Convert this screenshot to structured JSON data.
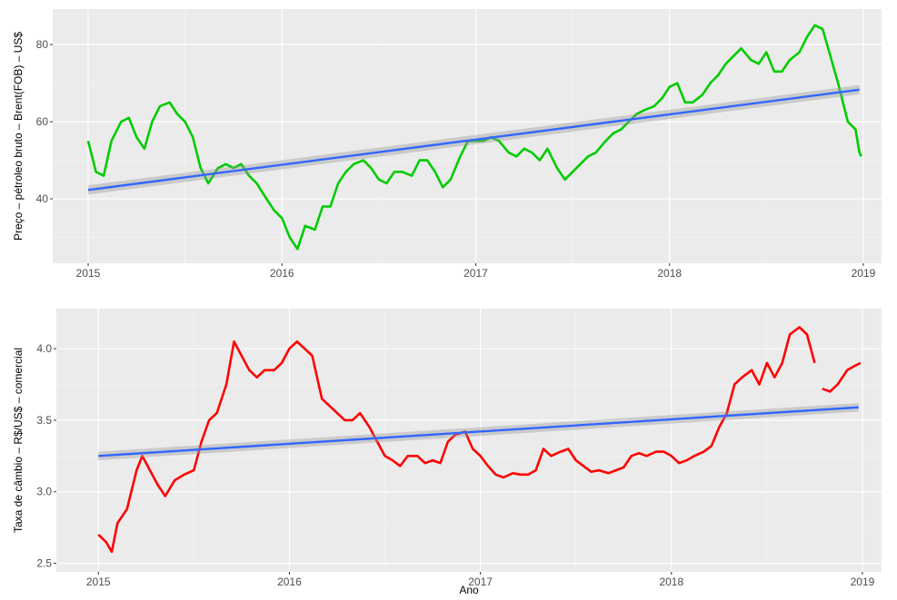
{
  "chart_data": [
    {
      "type": "line",
      "ylabel": "Preço – pétroleo bruto – Brent(FOB) – US$",
      "xlim": [
        2014.817,
        2019.094
      ],
      "ylim": [
        23.3,
        89.2
      ],
      "xticks": [
        2015,
        2016,
        2017,
        2018,
        2019
      ],
      "yticks": [
        40,
        60,
        80
      ],
      "xminor": [
        2015.5,
        2016.5,
        2017.5,
        2018.5
      ],
      "yminor": [
        30,
        50,
        70
      ],
      "grid": true,
      "series": [
        {
          "color": "#00cc00",
          "x": [
            2015.0,
            2015.04,
            2015.08,
            2015.12,
            2015.17,
            2015.21,
            2015.25,
            2015.29,
            2015.33,
            2015.37,
            2015.42,
            2015.46,
            2015.5,
            2015.54,
            2015.58,
            2015.62,
            2015.67,
            2015.71,
            2015.75,
            2015.79,
            2015.83,
            2015.87,
            2015.92,
            2015.96,
            2016.0,
            2016.04,
            2016.08,
            2016.12,
            2016.17,
            2016.21,
            2016.25,
            2016.29,
            2016.33,
            2016.37,
            2016.42,
            2016.46,
            2016.5,
            2016.54,
            2016.58,
            2016.62,
            2016.67,
            2016.71,
            2016.75,
            2016.79,
            2016.83,
            2016.87,
            2016.92,
            2016.96,
            2017.0,
            2017.04,
            2017.08,
            2017.12,
            2017.17,
            2017.21,
            2017.25,
            2017.29,
            2017.33,
            2017.37,
            2017.42,
            2017.46,
            2017.5,
            2017.54,
            2017.58,
            2017.62,
            2017.67,
            2017.71,
            2017.75,
            2017.79,
            2017.83,
            2017.87,
            2017.92,
            2017.96,
            2018.0,
            2018.04,
            2018.08,
            2018.12,
            2018.17,
            2018.21,
            2018.25,
            2018.29,
            2018.33,
            2018.37,
            2018.42,
            2018.46,
            2018.5,
            2018.54,
            2018.58,
            2018.62,
            2018.67,
            2018.71,
            2018.75,
            2018.79,
            2018.83,
            2018.87,
            2018.92,
            2018.96,
            2018.98,
            2018.99
          ],
          "values": [
            55,
            47,
            46,
            55,
            60,
            61,
            56,
            53,
            60,
            64,
            65,
            62,
            60,
            56,
            48,
            44,
            48,
            49,
            48,
            49,
            46,
            44,
            40,
            37,
            35,
            30,
            27,
            33,
            32,
            38,
            38,
            44,
            47,
            49,
            50,
            48,
            45,
            44,
            47,
            47,
            46,
            50,
            50,
            47,
            43,
            45,
            51,
            55,
            55,
            55,
            56,
            55,
            52,
            51,
            53,
            52,
            50,
            53,
            48,
            45,
            47,
            49,
            51,
            52,
            55,
            57,
            58,
            60,
            62,
            63,
            64,
            66,
            69,
            70,
            65,
            65,
            67,
            70,
            72,
            75,
            77,
            79,
            76,
            75,
            78,
            73,
            73,
            76,
            78,
            82,
            85,
            84,
            77,
            70,
            60,
            58,
            52,
            51
          ]
        }
      ],
      "trend": {
        "color": "#3366ff",
        "x": [
          2015,
          2018.98
        ],
        "values": [
          42.3,
          68.3
        ],
        "lower": [
          41.1,
          67.1
        ],
        "upper": [
          43.5,
          69.5
        ]
      }
    },
    {
      "type": "line",
      "xlabel": "Ano",
      "ylabel": "Taxa de câmbio – R$/US$ – comercial",
      "xlim": [
        2014.78,
        2019.1
      ],
      "ylim": [
        2.44,
        4.28
      ],
      "xticks": [
        2015,
        2016,
        2017,
        2018,
        2019
      ],
      "yticks": [
        2.5,
        {
          "value": 3,
          "label": "3.0"
        },
        3.5,
        {
          "value": 4,
          "label": "4.0"
        }
      ],
      "xminor": [
        2015.5,
        2016.5,
        2017.5,
        2018.5
      ],
      "yminor": [
        2.75,
        3.25,
        3.75
      ],
      "grid": true,
      "series": [
        {
          "color": "#ff0000",
          "x": [
            2015.0,
            2015.04,
            2015.07,
            2015.1,
            2015.15,
            2015.2,
            2015.23,
            2015.27,
            2015.31,
            2015.35,
            2015.4,
            2015.45,
            2015.5,
            2015.54,
            2015.58,
            2015.62,
            2015.67,
            2015.71,
            2015.75,
            2015.79,
            2015.83,
            2015.87,
            2015.92,
            2015.96,
            2016.0,
            2016.04,
            2016.08,
            2016.12,
            2016.17,
            2016.21,
            2016.25,
            2016.29,
            2016.33,
            2016.37,
            2016.42,
            2016.46,
            2016.5,
            2016.54,
            2016.58,
            2016.62,
            2016.67,
            2016.71,
            2016.75,
            2016.79,
            2016.83,
            2016.87,
            2016.92,
            2016.96,
            2017.0,
            2017.04,
            2017.08,
            2017.12,
            2017.17,
            2017.21,
            2017.25,
            2017.29,
            2017.33,
            2017.37,
            2017.42,
            2017.46,
            2017.5,
            2017.54,
            2017.58,
            2017.62,
            2017.67,
            2017.71,
            2017.75,
            2017.79,
            2017.83,
            2017.87,
            2017.92,
            2017.96,
            2018.0,
            2018.04,
            2018.08,
            2018.12,
            2018.17,
            2018.21,
            2018.25,
            2018.29,
            2018.33,
            2018.37,
            2018.42,
            2018.46,
            2018.5,
            2018.54,
            2018.58,
            2018.62,
            2018.67,
            2018.71,
            2018.75,
            2018.77,
            2018.79,
            2018.83,
            2018.87,
            2018.92,
            2018.96,
            2018.99
          ],
          "values": [
            2.7,
            2.65,
            2.58,
            2.78,
            2.88,
            3.15,
            3.25,
            3.15,
            3.05,
            2.97,
            3.08,
            3.12,
            3.15,
            3.35,
            3.5,
            3.55,
            3.75,
            4.05,
            3.95,
            3.85,
            3.8,
            3.85,
            3.85,
            3.9,
            4.0,
            4.05,
            4.0,
            3.95,
            3.65,
            3.6,
            3.55,
            3.5,
            3.5,
            3.55,
            3.45,
            3.35,
            3.25,
            3.22,
            3.18,
            3.25,
            3.25,
            3.2,
            3.22,
            3.2,
            3.35,
            3.4,
            3.42,
            3.3,
            3.25,
            3.18,
            3.12,
            3.1,
            3.13,
            3.12,
            3.12,
            3.15,
            3.3,
            3.25,
            3.28,
            3.3,
            3.22,
            3.18,
            3.14,
            3.15,
            3.13,
            3.15,
            3.17,
            3.25,
            3.27,
            3.25,
            3.28,
            3.28,
            3.25,
            3.2,
            3.22,
            3.25,
            3.28,
            3.32,
            3.45,
            3.55,
            3.75,
            3.8,
            3.85,
            3.75,
            3.9,
            3.8,
            3.9,
            4.1,
            4.15,
            4.1,
            3.9,
            null,
            3.72,
            3.7,
            3.75,
            3.85,
            3.88,
            3.9
          ]
        }
      ],
      "trend": {
        "color": "#3366ff",
        "x": [
          2015,
          2018.98
        ],
        "values": [
          3.25,
          3.59
        ],
        "lower": [
          3.22,
          3.56
        ],
        "upper": [
          3.28,
          3.62
        ]
      }
    }
  ]
}
